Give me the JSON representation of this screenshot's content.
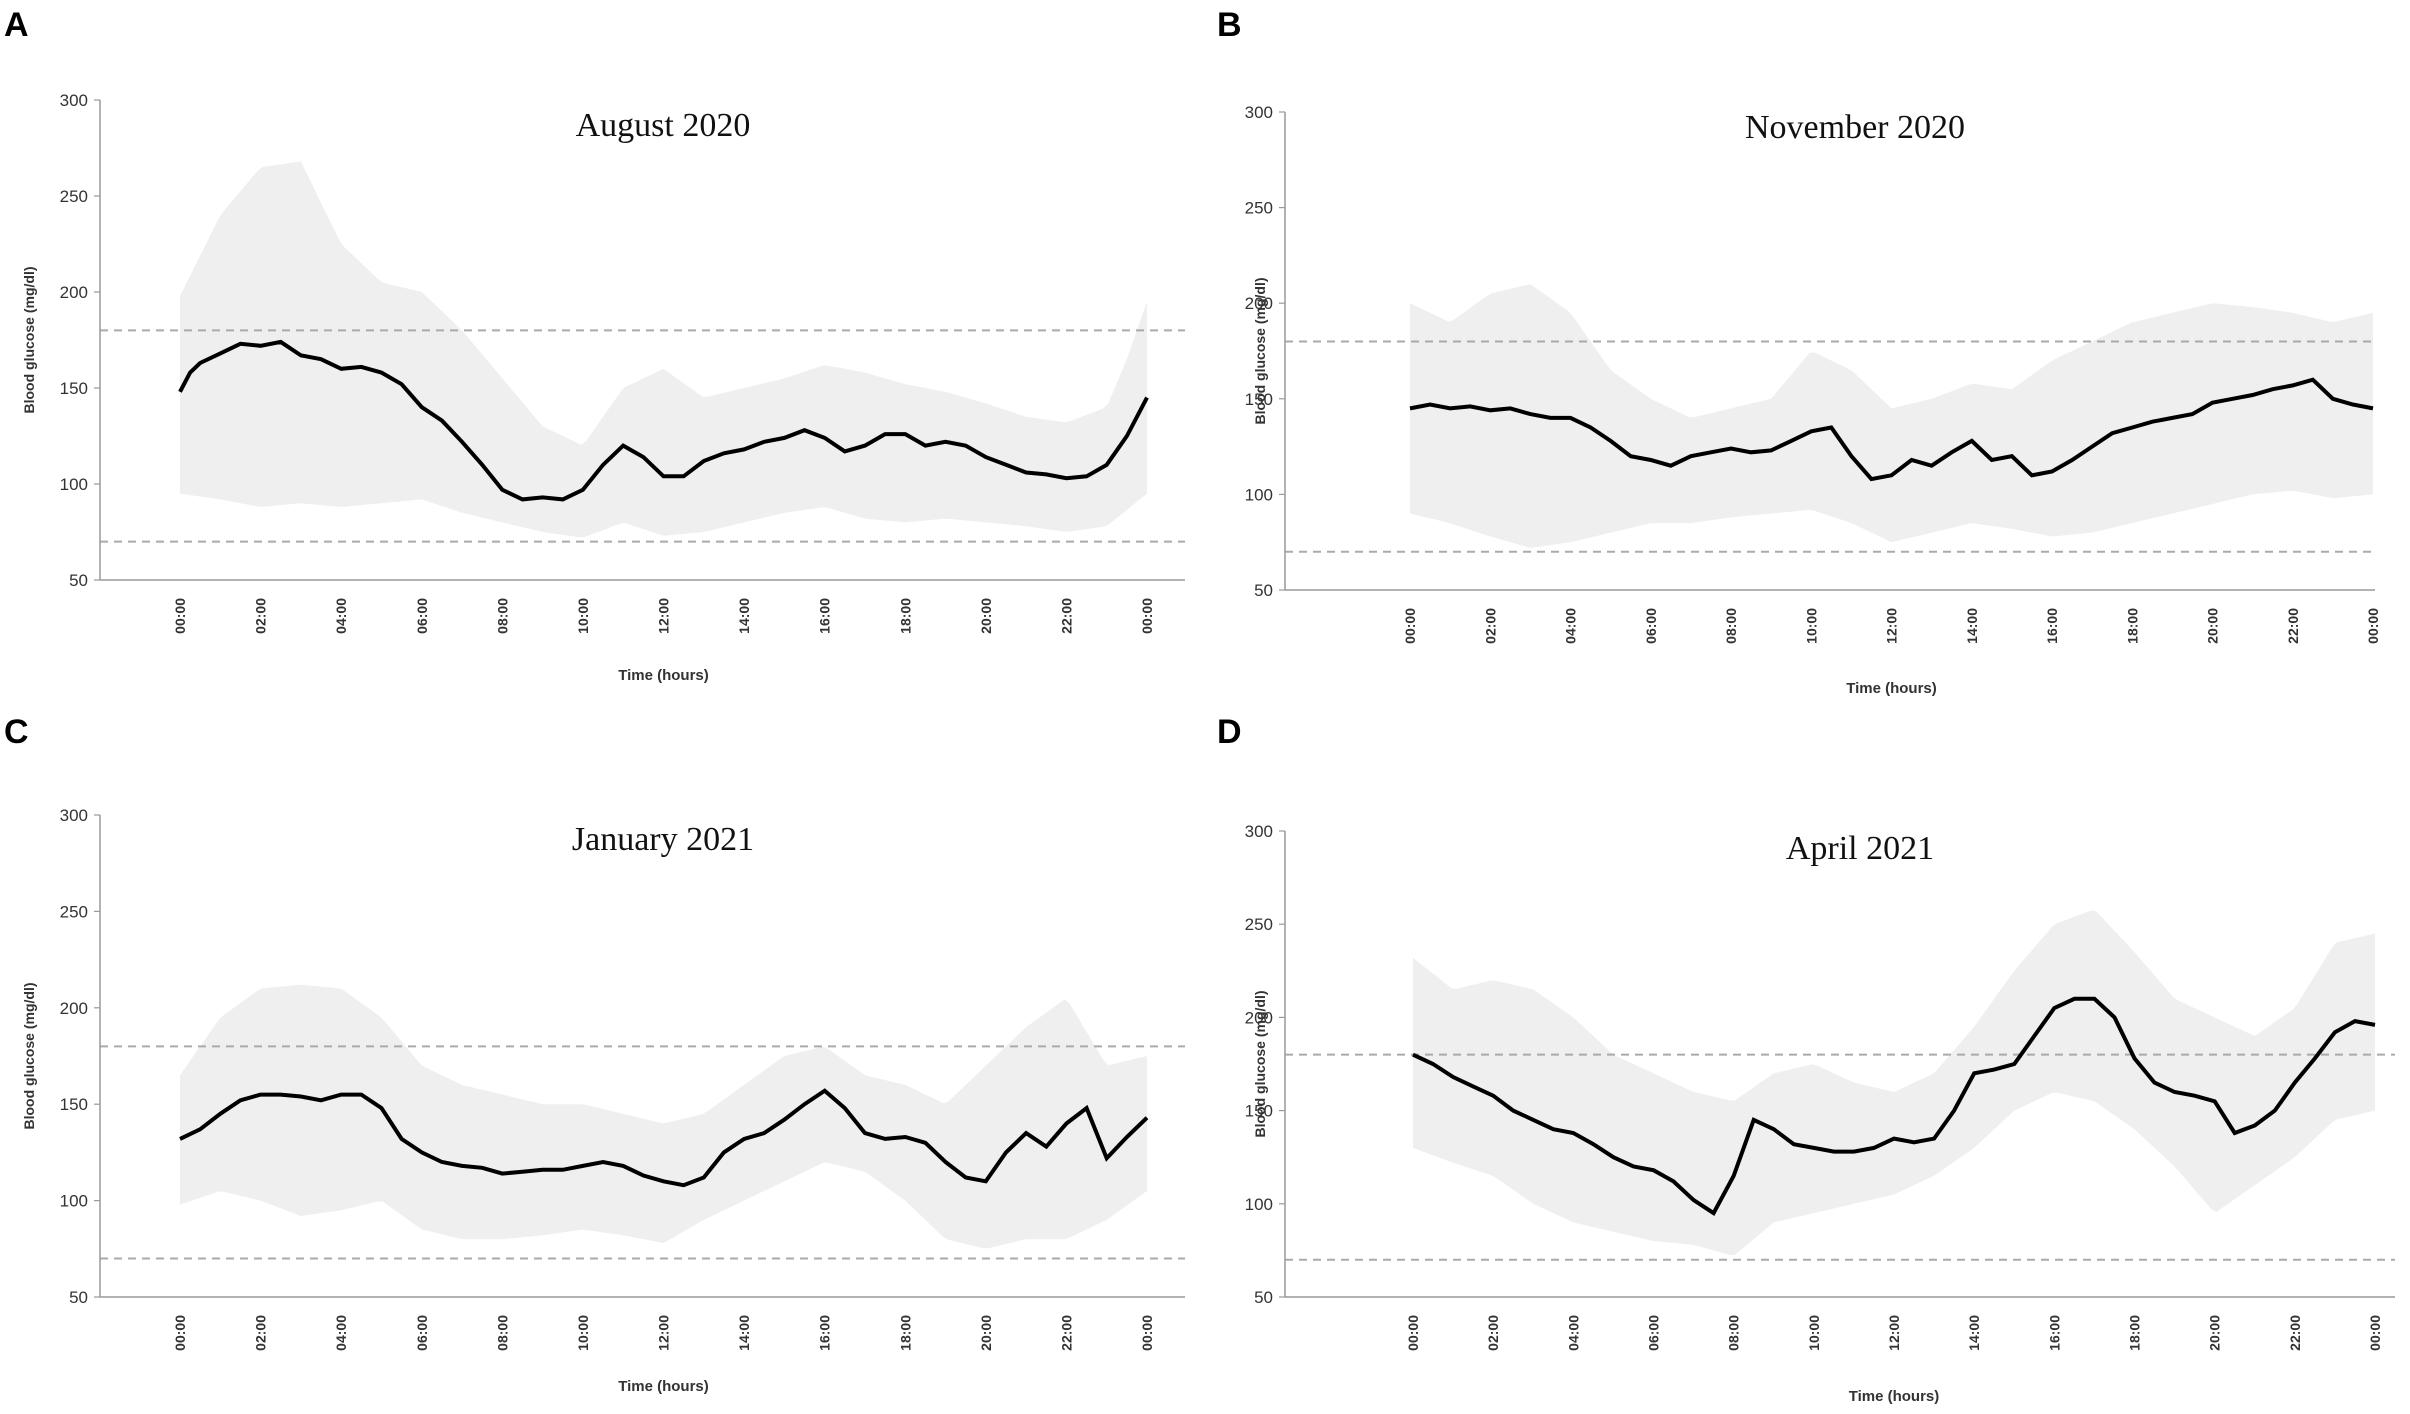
{
  "chart_data": [
    {
      "panel": "A",
      "type": "line",
      "title": "August 2020",
      "xlabel": "Time  (hours)",
      "ylabel": "Blood glucose (mg/dl)",
      "ylim": [
        50,
        300
      ],
      "yticks": [
        50,
        100,
        150,
        200,
        250,
        300
      ],
      "xticks": [
        "00:00",
        "02:00",
        "04:00",
        "06:00",
        "08:00",
        "10:00",
        "12:00",
        "14:00",
        "16:00",
        "18:00",
        "20:00",
        "22:00",
        "00:00"
      ],
      "reference_lines": [
        70,
        180
      ],
      "series": [
        {
          "name": "median",
          "x": [
            0,
            0.25,
            0.5,
            1,
            1.5,
            2,
            2.5,
            3,
            3.5,
            4,
            4.5,
            5,
            5.5,
            6,
            6.5,
            7,
            7.5,
            8,
            8.5,
            9,
            9.5,
            10,
            10.5,
            11,
            11.5,
            12,
            12.5,
            13,
            13.5,
            14,
            14.5,
            15,
            15.5,
            16,
            16.5,
            17,
            17.5,
            18,
            18.5,
            19,
            19.5,
            20,
            20.5,
            21,
            21.5,
            22,
            22.5,
            23,
            23.5,
            24
          ],
          "values": [
            148,
            158,
            163,
            168,
            173,
            172,
            174,
            167,
            165,
            160,
            161,
            158,
            152,
            140,
            133,
            122,
            110,
            97,
            92,
            93,
            92,
            97,
            110,
            120,
            114,
            104,
            104,
            112,
            116,
            118,
            122,
            124,
            128,
            124,
            117,
            120,
            126,
            126,
            120,
            122,
            120,
            114,
            110,
            106,
            105,
            103,
            104,
            110,
            125,
            145
          ]
        },
        {
          "name": "upper",
          "x": [
            0,
            1,
            2,
            3,
            4,
            5,
            6,
            7,
            8,
            9,
            10,
            11,
            12,
            13,
            14,
            15,
            16,
            17,
            18,
            19,
            20,
            21,
            22,
            23,
            23.5,
            24
          ],
          "values": [
            198,
            240,
            265,
            268,
            225,
            205,
            200,
            180,
            155,
            130,
            120,
            150,
            160,
            145,
            150,
            155,
            162,
            158,
            152,
            148,
            142,
            135,
            132,
            140,
            165,
            195
          ]
        },
        {
          "name": "lower",
          "x": [
            0,
            1,
            2,
            3,
            4,
            5,
            6,
            7,
            8,
            9,
            10,
            11,
            12,
            13,
            14,
            15,
            16,
            17,
            18,
            19,
            20,
            21,
            22,
            23,
            24
          ],
          "values": [
            95,
            92,
            88,
            90,
            88,
            90,
            92,
            85,
            80,
            75,
            72,
            80,
            73,
            75,
            80,
            85,
            88,
            82,
            80,
            82,
            80,
            78,
            75,
            78,
            95
          ]
        }
      ]
    },
    {
      "panel": "B",
      "type": "line",
      "title": "November 2020",
      "xlabel": "Time  (hours)",
      "ylabel": "Blood glucose (mg/dl)",
      "ylim": [
        50,
        300
      ],
      "yticks": [
        50,
        100,
        150,
        200,
        250,
        300
      ],
      "xticks": [
        "00:00",
        "02:00",
        "04:00",
        "06:00",
        "08:00",
        "10:00",
        "12:00",
        "14:00",
        "16:00",
        "18:00",
        "20:00",
        "22:00",
        "00:00"
      ],
      "reference_lines": [
        70,
        180
      ],
      "series": [
        {
          "name": "median",
          "x": [
            0,
            0.5,
            1,
            1.5,
            2,
            2.5,
            3,
            3.5,
            4,
            4.5,
            5,
            5.5,
            6,
            6.5,
            7,
            7.5,
            8,
            8.5,
            9,
            9.5,
            10,
            10.5,
            11,
            11.5,
            12,
            12.5,
            13,
            13.5,
            14,
            14.5,
            15,
            15.5,
            16,
            16.5,
            17,
            17.5,
            18,
            18.5,
            19,
            19.5,
            20,
            20.5,
            21,
            21.5,
            22,
            22.5,
            23,
            23.5,
            24
          ],
          "values": [
            145,
            147,
            145,
            146,
            144,
            145,
            142,
            140,
            140,
            135,
            128,
            120,
            118,
            115,
            120,
            122,
            124,
            122,
            123,
            128,
            133,
            135,
            120,
            108,
            110,
            118,
            115,
            122,
            128,
            118,
            120,
            110,
            112,
            118,
            125,
            132,
            135,
            138,
            140,
            142,
            148,
            150,
            152,
            155,
            157,
            160,
            150,
            147,
            145
          ]
        },
        {
          "name": "upper",
          "x": [
            0,
            1,
            2,
            3,
            4,
            5,
            6,
            7,
            8,
            9,
            10,
            11,
            12,
            13,
            14,
            15,
            16,
            17,
            18,
            19,
            20,
            21,
            22,
            23,
            24
          ],
          "values": [
            200,
            190,
            205,
            210,
            195,
            165,
            150,
            140,
            145,
            150,
            175,
            165,
            145,
            150,
            158,
            155,
            170,
            180,
            190,
            195,
            200,
            198,
            195,
            190,
            195
          ]
        },
        {
          "name": "lower",
          "x": [
            0,
            1,
            2,
            3,
            4,
            5,
            6,
            7,
            8,
            9,
            10,
            11,
            12,
            13,
            14,
            15,
            16,
            17,
            18,
            19,
            20,
            21,
            22,
            23,
            24
          ],
          "values": [
            90,
            85,
            78,
            72,
            75,
            80,
            85,
            85,
            88,
            90,
            92,
            85,
            75,
            80,
            85,
            82,
            78,
            80,
            85,
            90,
            95,
            100,
            102,
            98,
            100
          ]
        }
      ]
    },
    {
      "panel": "C",
      "type": "line",
      "title": "January 2021",
      "xlabel": "Time  (hours)",
      "ylabel": "Blood glucose (mg/dl)",
      "ylim": [
        50,
        300
      ],
      "yticks": [
        50,
        100,
        150,
        200,
        250,
        300
      ],
      "xticks": [
        "00:00",
        "02:00",
        "04:00",
        "06:00",
        "08:00",
        "10:00",
        "12:00",
        "14:00",
        "16:00",
        "18:00",
        "20:00",
        "22:00",
        "00:00"
      ],
      "reference_lines": [
        70,
        180
      ],
      "series": [
        {
          "name": "median",
          "x": [
            0,
            0.5,
            1,
            1.5,
            2,
            2.5,
            3,
            3.5,
            4,
            4.5,
            5,
            5.5,
            6,
            6.5,
            7,
            7.5,
            8,
            8.5,
            9,
            9.5,
            10,
            10.5,
            11,
            11.5,
            12,
            12.5,
            13,
            13.5,
            14,
            14.5,
            15,
            15.5,
            16,
            16.5,
            17,
            17.5,
            18,
            18.5,
            19,
            19.5,
            20,
            20.5,
            21,
            21.5,
            22,
            22.5,
            23,
            23.5,
            24
          ],
          "values": [
            132,
            137,
            145,
            152,
            155,
            155,
            154,
            152,
            155,
            155,
            148,
            132,
            125,
            120,
            118,
            117,
            114,
            115,
            116,
            116,
            118,
            120,
            118,
            113,
            110,
            108,
            112,
            125,
            132,
            135,
            142,
            150,
            157,
            148,
            135,
            132,
            133,
            130,
            120,
            112,
            110,
            125,
            135,
            128,
            140,
            148,
            122,
            133,
            143
          ]
        },
        {
          "name": "upper",
          "x": [
            0,
            1,
            2,
            3,
            4,
            5,
            6,
            7,
            8,
            9,
            10,
            11,
            12,
            13,
            14,
            15,
            16,
            17,
            18,
            19,
            20,
            21,
            22,
            23,
            24
          ],
          "values": [
            165,
            195,
            210,
            212,
            210,
            195,
            170,
            160,
            155,
            150,
            150,
            145,
            140,
            145,
            160,
            175,
            180,
            165,
            160,
            150,
            170,
            190,
            205,
            170,
            175
          ]
        },
        {
          "name": "lower",
          "x": [
            0,
            1,
            2,
            3,
            4,
            5,
            6,
            7,
            8,
            9,
            10,
            11,
            12,
            13,
            14,
            15,
            16,
            17,
            18,
            19,
            20,
            21,
            22,
            23,
            24
          ],
          "values": [
            98,
            105,
            100,
            92,
            95,
            100,
            85,
            80,
            80,
            82,
            85,
            82,
            78,
            90,
            100,
            110,
            120,
            115,
            100,
            80,
            75,
            80,
            80,
            90,
            105
          ]
        }
      ]
    },
    {
      "panel": "D",
      "type": "line",
      "title": "April 2021",
      "xlabel": "Time  (hours)",
      "ylabel": "Blood glucose (mg/dl)",
      "ylim": [
        50,
        300
      ],
      "yticks": [
        50,
        100,
        150,
        200,
        250,
        300
      ],
      "xticks": [
        "00:00",
        "02:00",
        "04:00",
        "06:00",
        "08:00",
        "10:00",
        "12:00",
        "14:00",
        "16:00",
        "18:00",
        "20:00",
        "22:00",
        "00:00"
      ],
      "reference_lines": [
        70,
        180
      ],
      "series": [
        {
          "name": "median",
          "x": [
            0,
            0.5,
            1,
            1.5,
            2,
            2.5,
            3,
            3.5,
            4,
            4.5,
            5,
            5.5,
            6,
            6.5,
            7,
            7.5,
            8,
            8.5,
            9,
            9.5,
            10,
            10.5,
            11,
            11.5,
            12,
            12.5,
            13,
            13.5,
            14,
            14.5,
            15,
            15.5,
            16,
            16.5,
            17,
            17.5,
            18,
            18.5,
            19,
            19.5,
            20,
            20.5,
            21,
            21.5,
            22,
            22.5,
            23,
            23.5,
            24
          ],
          "values": [
            180,
            175,
            168,
            163,
            158,
            150,
            145,
            140,
            138,
            132,
            125,
            120,
            118,
            112,
            102,
            95,
            115,
            145,
            140,
            132,
            130,
            128,
            128,
            130,
            135,
            133,
            135,
            150,
            170,
            172,
            175,
            190,
            205,
            210,
            210,
            200,
            178,
            165,
            160,
            158,
            155,
            138,
            142,
            150,
            165,
            178,
            192,
            198,
            196
          ]
        },
        {
          "name": "upper",
          "x": [
            0,
            1,
            2,
            3,
            4,
            5,
            6,
            7,
            8,
            9,
            10,
            11,
            12,
            13,
            14,
            15,
            16,
            17,
            18,
            19,
            20,
            21,
            22,
            23,
            24
          ],
          "values": [
            232,
            215,
            220,
            215,
            200,
            180,
            170,
            160,
            155,
            170,
            175,
            165,
            160,
            170,
            195,
            225,
            250,
            258,
            235,
            210,
            200,
            190,
            205,
            240,
            245
          ]
        },
        {
          "name": "lower",
          "x": [
            0,
            1,
            2,
            3,
            4,
            5,
            6,
            7,
            8,
            9,
            10,
            11,
            12,
            13,
            14,
            15,
            16,
            17,
            18,
            19,
            20,
            21,
            22,
            23,
            24
          ],
          "values": [
            130,
            122,
            115,
            100,
            90,
            85,
            80,
            78,
            72,
            90,
            95,
            100,
            105,
            115,
            130,
            150,
            160,
            155,
            140,
            120,
            95,
            110,
            125,
            145,
            150
          ]
        }
      ]
    }
  ]
}
